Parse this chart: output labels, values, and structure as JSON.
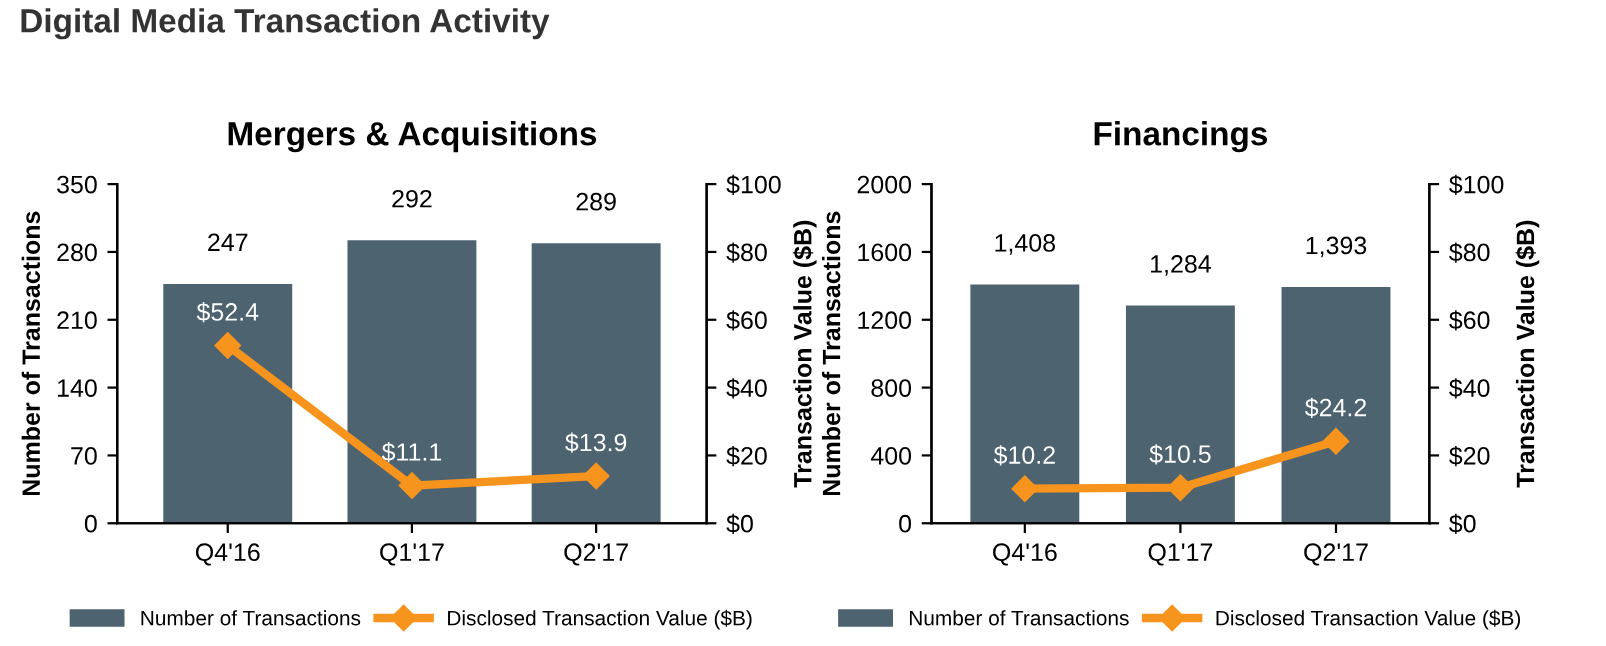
{
  "chart_data": [
    {
      "type": "bar",
      "title": "Mergers & Acquisitions",
      "annotations": [
        "Digital Media Transaction Activity"
      ],
      "categories": [
        "Q4'16",
        "Q1'17",
        "Q2'17"
      ],
      "ylabel": "Number of Transactions",
      "y2label": "Transaction Value ($B)",
      "ylim": [
        0,
        350
      ],
      "yticks": [
        0,
        70,
        140,
        210,
        280,
        350
      ],
      "y2lim": [
        0,
        100
      ],
      "y2ticks": [
        {
          "value": 0,
          "label": "$0"
        },
        {
          "value": 20,
          "label": "$20"
        },
        {
          "value": 40,
          "label": "$40"
        },
        {
          "value": 60,
          "label": "$60"
        },
        {
          "value": 80,
          "label": "$80"
        },
        {
          "value": 100,
          "label": "$100"
        }
      ],
      "legend": "bottom",
      "grid": false,
      "series": [
        {
          "name": "Number of Transactions",
          "color": "#4d6370",
          "values": [
            247,
            292,
            289
          ],
          "value_labels": [
            "247",
            "292",
            "289"
          ]
        },
        {
          "name": "Disclosed Transaction Value ($B)",
          "type": "line",
          "axis": "y2",
          "color": "#f7941d",
          "marker": "diamond",
          "values": [
            52.4,
            11.1,
            13.9
          ],
          "value_labels": [
            "$52.4",
            "$11.1",
            "$13.9"
          ]
        }
      ]
    },
    {
      "type": "bar",
      "title": "Financings",
      "categories": [
        "Q4'16",
        "Q1'17",
        "Q2'17"
      ],
      "ylabel": "Number of Transactions",
      "y2label": "Transaction Value ($B)",
      "ylim": [
        0,
        2000
      ],
      "yticks": [
        0,
        400,
        800,
        1200,
        1600,
        2000
      ],
      "y2lim": [
        0,
        100
      ],
      "y2ticks": [
        {
          "value": 0,
          "label": "$0"
        },
        {
          "value": 20,
          "label": "$20"
        },
        {
          "value": 40,
          "label": "$40"
        },
        {
          "value": 60,
          "label": "$60"
        },
        {
          "value": 80,
          "label": "$80"
        },
        {
          "value": 100,
          "label": "$100"
        }
      ],
      "legend": "bottom",
      "grid": false,
      "series": [
        {
          "name": "Number of Transactions",
          "color": "#4d6370",
          "values": [
            1408,
            1284,
            1393
          ],
          "value_labels": [
            "1,408",
            "1,284",
            "1,393"
          ]
        },
        {
          "name": "Disclosed Transaction Value ($B)",
          "type": "line",
          "axis": "y2",
          "color": "#f7941d",
          "marker": "diamond",
          "values": [
            10.2,
            10.5,
            24.2
          ],
          "value_labels": [
            "$10.2",
            "$10.5",
            "$24.2"
          ]
        }
      ]
    }
  ]
}
